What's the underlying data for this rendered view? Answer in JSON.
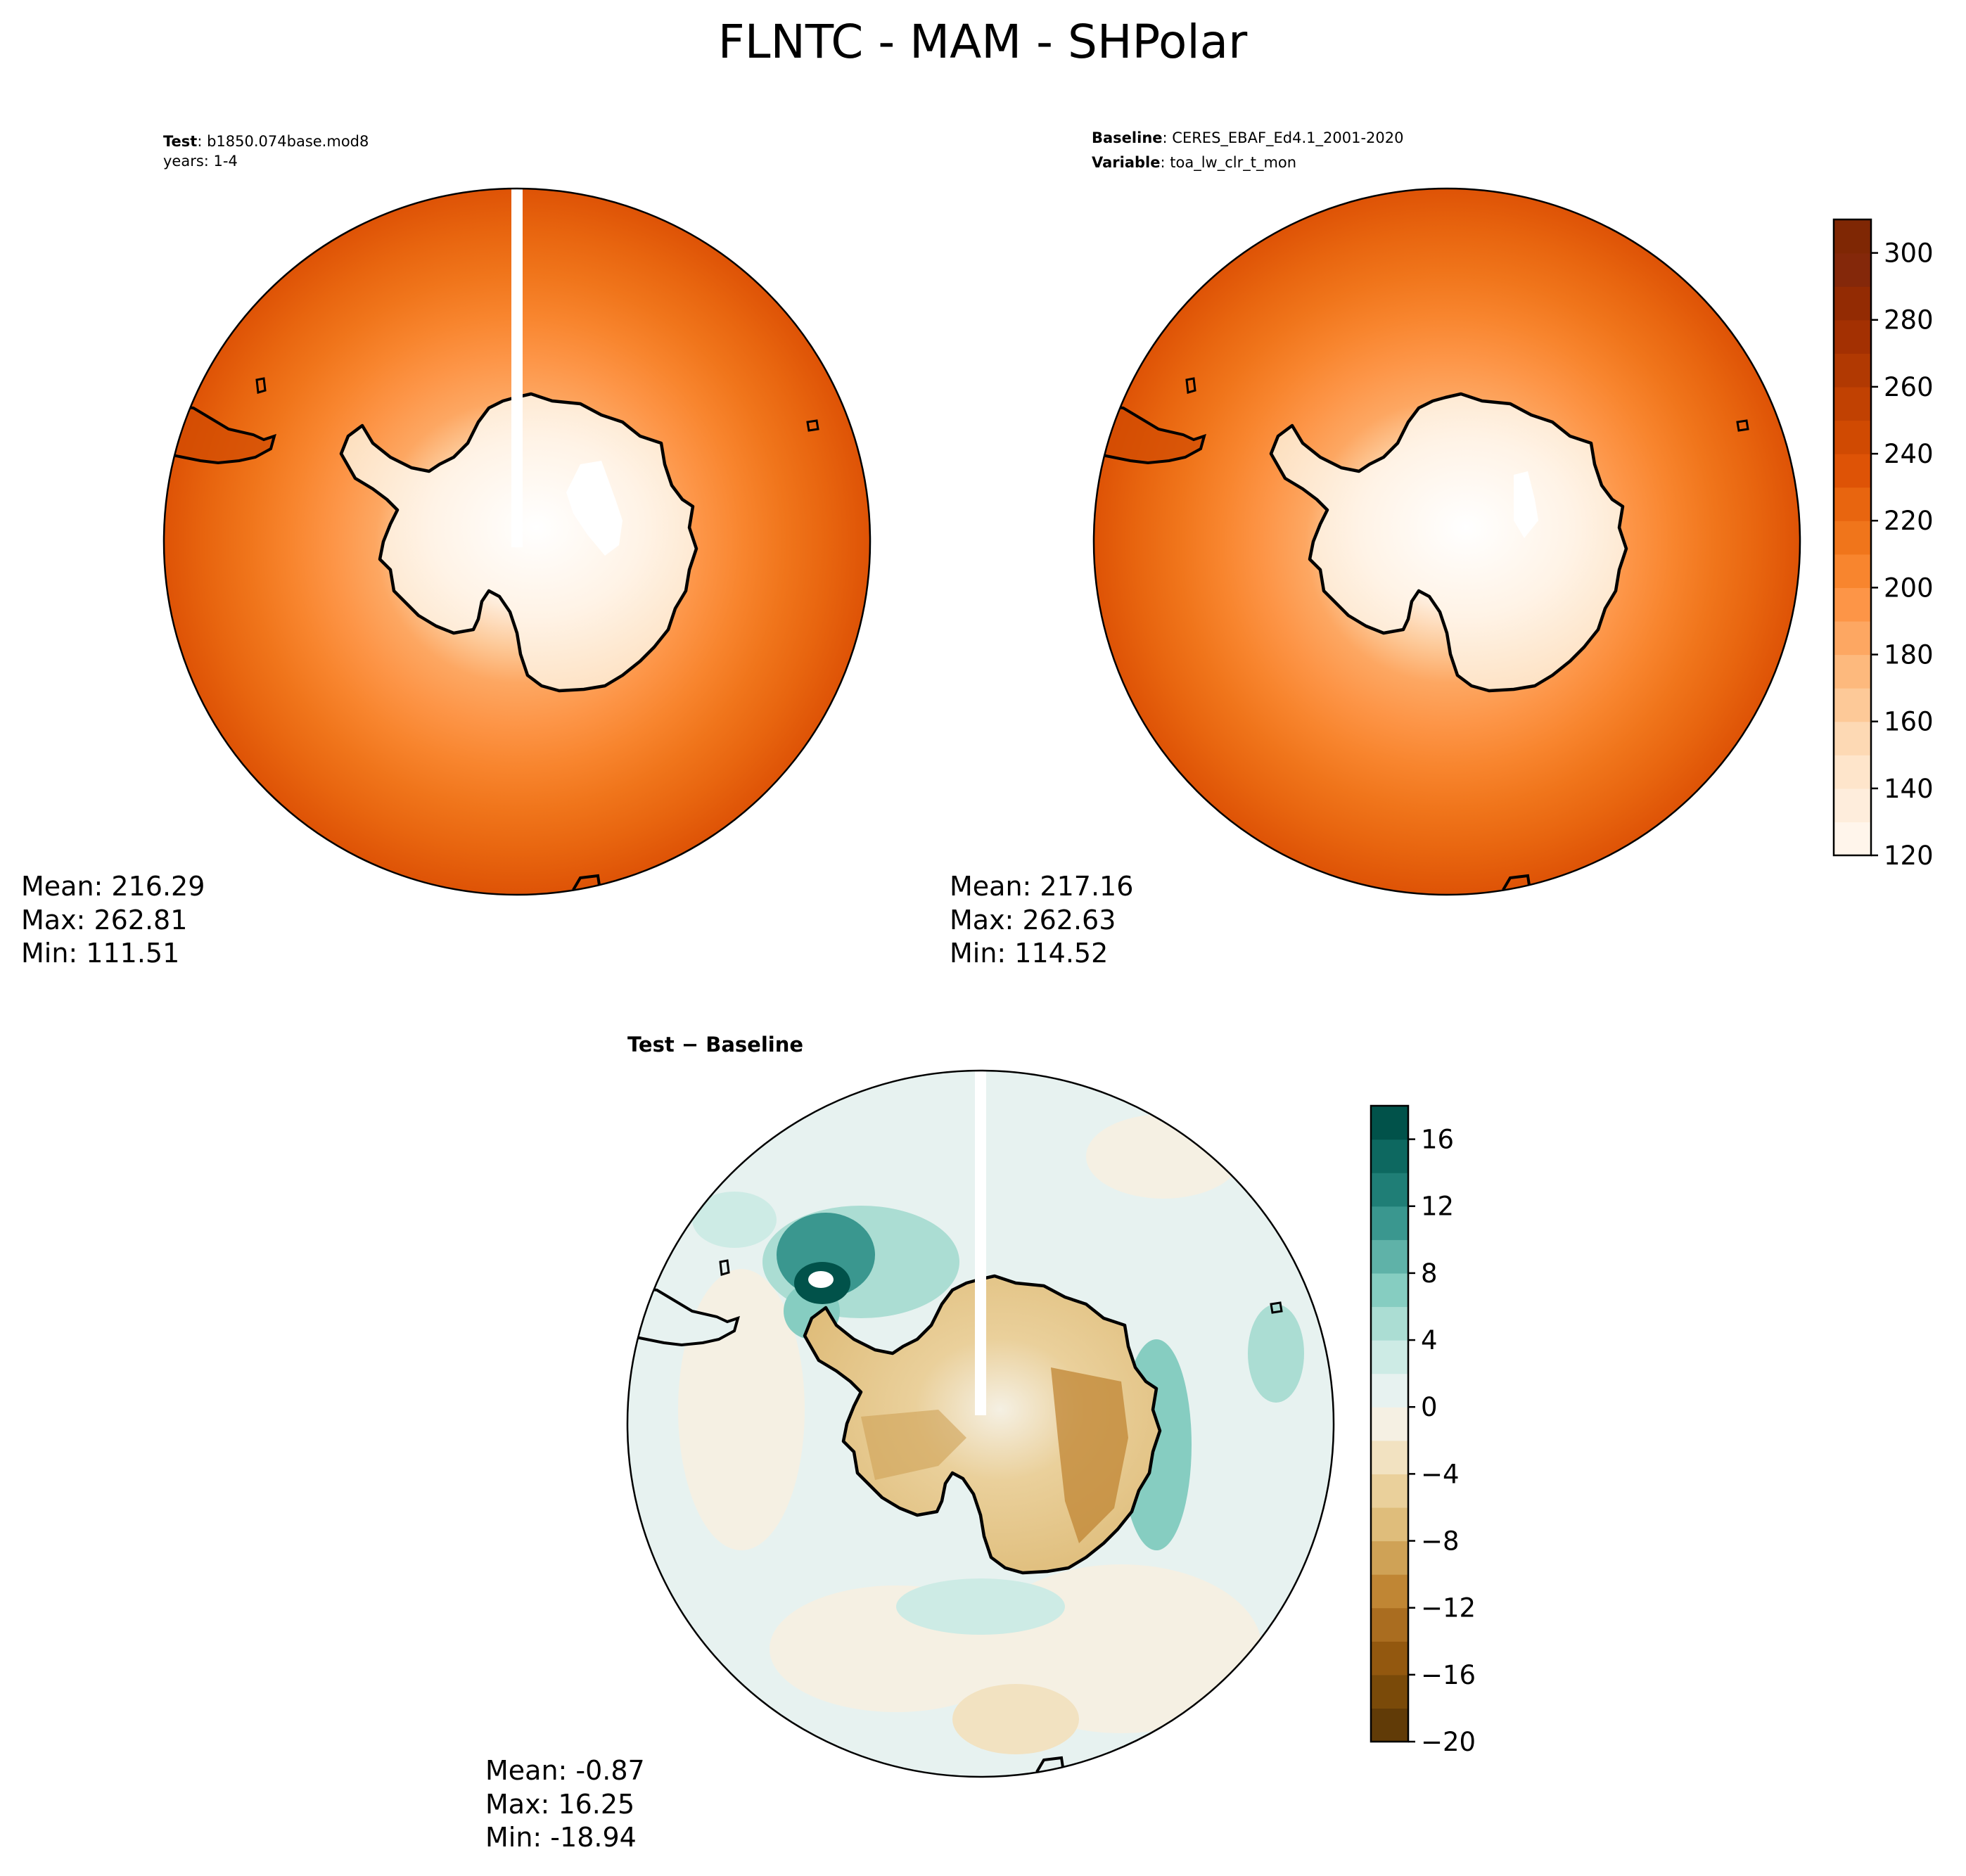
{
  "title": "FLNTC - MAM - SHPolar",
  "panels": {
    "test": {
      "label_bold": "Test",
      "label_value": "b1850.074base.mod8",
      "line2": "years: 1-4",
      "stats": {
        "mean": "Mean: 216.29",
        "max": "Max: 262.81",
        "min": "Min: 111.51"
      }
    },
    "baseline": {
      "label_bold": "Baseline",
      "label_value": "CERES_EBAF_Ed4.1_2001-2020",
      "label2_bold": "Variable",
      "label2_value": "toa_lw_clr_t_mon",
      "stats": {
        "mean": "Mean: 217.16",
        "max": "Max: 262.63",
        "min": "Min: 114.52"
      }
    },
    "diff": {
      "title": "Test − Baseline",
      "stats": {
        "mean": "Mean: -0.87",
        "max": "Max: 16.25",
        "min": "Min: -18.94"
      }
    }
  },
  "colorbars": {
    "main": {
      "colormap": "Oranges",
      "ticks": [
        "120",
        "140",
        "160",
        "180",
        "200",
        "220",
        "240",
        "260",
        "280",
        "300"
      ],
      "tick_values": [
        120,
        140,
        160,
        180,
        200,
        220,
        240,
        260,
        280,
        300
      ],
      "range": [
        120,
        310
      ],
      "colors": [
        "#fff5eb",
        "#feeddc",
        "#fee5cb",
        "#fdd9b4",
        "#fdc998",
        "#fdb97d",
        "#fda762",
        "#fd9547",
        "#f8852e",
        "#f0751b",
        "#e8650f",
        "#de5306",
        "#d04a02",
        "#c14102",
        "#b13902",
        "#a33002",
        "#932b03",
        "#84280a",
        "#7f2704"
      ]
    },
    "diff": {
      "colormap": "BrBG",
      "ticks": [
        "−20",
        "−16",
        "−12",
        "−8",
        "−4",
        "0",
        "4",
        "8",
        "12",
        "16"
      ],
      "tick_values": [
        -20,
        -16,
        -12,
        -8,
        -4,
        0,
        4,
        8,
        12,
        16
      ],
      "range": [
        -20,
        18
      ],
      "colors": [
        "#613b07",
        "#7a4a09",
        "#93580f",
        "#aa6d20",
        "#c08634",
        "#cfa256",
        "#dfbd7b",
        "#ead09b",
        "#f2e2c1",
        "#f5f0e3",
        "#e7f2f0",
        "#cdebe5",
        "#abddd3",
        "#86cdc1",
        "#5fb2a8",
        "#3a978f",
        "#1f7e76",
        "#0d6860",
        "#01524a"
      ]
    }
  }
}
